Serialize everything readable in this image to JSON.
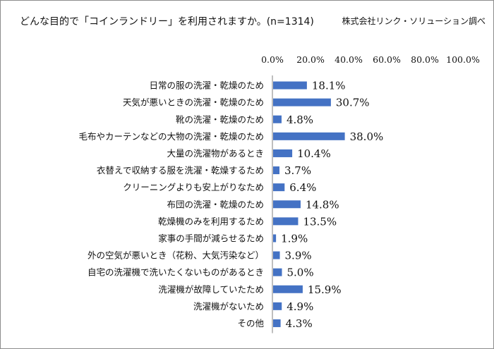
{
  "title": "どんな目的で「コインランドリー」を利用されますか。(n=1314)",
  "source": "株式会社リンク・ソリューション調べ",
  "chart_data": {
    "type": "bar",
    "orientation": "horizontal",
    "xlim": [
      0,
      100
    ],
    "tick_labels": [
      "0.0%",
      "20.0%",
      "40.0%",
      "60.0%",
      "80.0%",
      "100.0%"
    ],
    "tick_position": "top",
    "grid": false,
    "bar_color": "#4472c4",
    "categories": [
      "日常の服の洗濯・乾燥のため",
      "天気が悪いときの洗濯・乾燥のため",
      "靴の洗濯・乾燥のため",
      "毛布やカーテンなどの大物の洗濯・乾燥のため",
      "大量の洗濯物があるとき",
      "衣替えで収納する服を洗濯・乾燥するため",
      "クリーニングよりも安上がりなため",
      "布団の洗濯・乾燥のため",
      "乾燥機のみを利用するため",
      "家事の手間が減らせるため",
      "外の空気が悪いとき（花粉、大気汚染など）",
      "自宅の洗濯機で洗いたくないものがあるとき",
      "洗濯機が故障していたため",
      "洗濯機がないため",
      "その他"
    ],
    "values": [
      18.1,
      30.7,
      4.8,
      38.0,
      10.4,
      3.7,
      6.4,
      14.8,
      13.5,
      1.9,
      3.9,
      5.0,
      15.9,
      4.9,
      4.3
    ],
    "value_labels": [
      "18.1%",
      "30.7%",
      "4.8%",
      "38.0%",
      "10.4%",
      "3.7%",
      "6.4%",
      "14.8%",
      "13.5%",
      "1.9%",
      "3.9%",
      "5.0%",
      "15.9%",
      "4.9%",
      "4.3%"
    ]
  }
}
